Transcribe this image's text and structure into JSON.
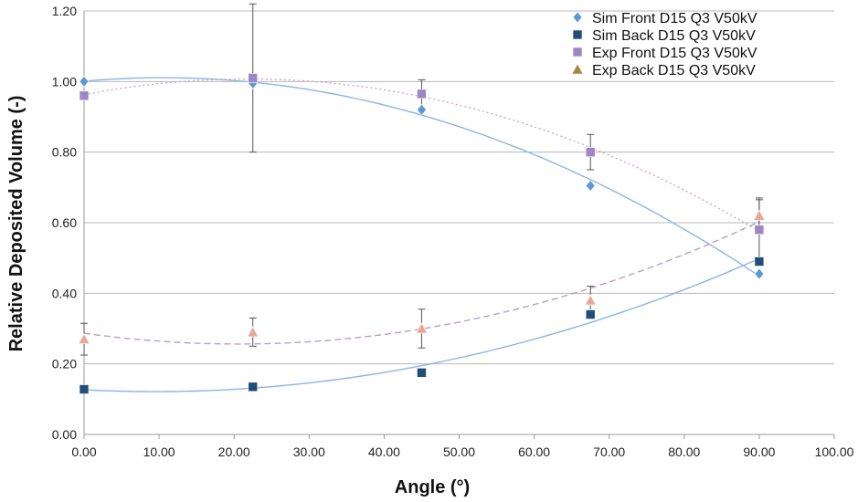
{
  "chart_data": {
    "type": "scatter",
    "xlabel": "Angle (°)",
    "ylabel": "Relative Deposited Volume (-)",
    "xlim": [
      0,
      100
    ],
    "ylim": [
      0,
      1.2
    ],
    "x_ticks": [
      "0.00",
      "10.00",
      "20.00",
      "30.00",
      "40.00",
      "50.00",
      "60.00",
      "70.00",
      "80.00",
      "90.00",
      "100.00"
    ],
    "y_ticks": [
      "0.00",
      "0.20",
      "0.40",
      "0.60",
      "0.80",
      "1.00",
      "1.20"
    ],
    "grid": "horizontal",
    "legend_position": "top-right",
    "series": [
      {
        "name": "Sim Front D15 Q3 V50kV",
        "marker": "diamond",
        "color": "#5b9bd5",
        "x": [
          0,
          22.5,
          45,
          67.5,
          90
        ],
        "y": [
          1.0,
          0.995,
          0.92,
          0.705,
          0.455
        ],
        "trend": "solid",
        "trend_color": "#8db4e2"
      },
      {
        "name": "Sim Back D15 Q3 V50kV",
        "marker": "square",
        "color": "#1f4e79",
        "x": [
          0,
          22.5,
          45,
          67.5,
          90
        ],
        "y": [
          0.128,
          0.135,
          0.175,
          0.34,
          0.49
        ],
        "trend": "solid",
        "trend_color": "#8db4e2"
      },
      {
        "name": "Exp Front D15 Q3 V50kV",
        "marker": "square",
        "color": "#9d86c4",
        "x": [
          0,
          22.5,
          45,
          67.5,
          90
        ],
        "y": [
          0.96,
          1.01,
          0.965,
          0.8,
          0.58
        ],
        "error": [
          0,
          0.21,
          0.04,
          0.05,
          0.09
        ],
        "trend": "dotted",
        "trend_color": "#c9a8c9"
      },
      {
        "name": "Exp Back D15 Q3 V50kV",
        "marker": "triangle",
        "color": "#e8a898",
        "legend_color": "#9a8c3a",
        "x": [
          0,
          22.5,
          45,
          67.5,
          90
        ],
        "y": [
          0.27,
          0.29,
          0.3,
          0.38,
          0.62
        ],
        "error": [
          0.045,
          0.04,
          0.055,
          0.04,
          0.045
        ],
        "trend": "dashed",
        "trend_color": "#b7a0c8"
      }
    ]
  }
}
